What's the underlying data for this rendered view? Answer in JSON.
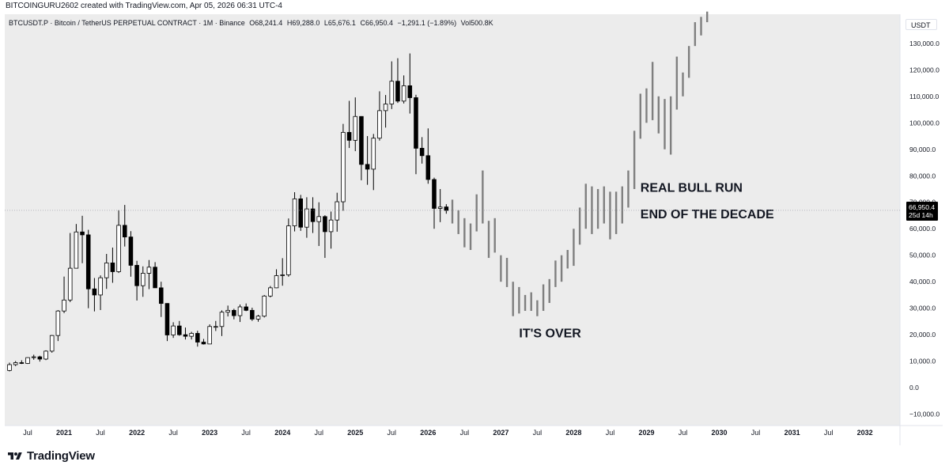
{
  "header": {
    "caption": "BITCOINGURU2602 created with TradingView.com, Apr 05, 2026 06:31 UTC-4"
  },
  "symbol_info": {
    "symbol": "BTCUSDT.P · Bitcoin / TetherUS PERPETUAL CONTRACT · 1M · Binance",
    "open": "O68,241.4",
    "high": "H69,288.0",
    "low": "L65,676.1",
    "close": "C66,950.4",
    "change": "−1,291.1 (−1.89%)",
    "volume": "Vol500.8K"
  },
  "quote_currency": "USDT",
  "price_label": {
    "value": "66,950.4",
    "countdown": "25d 14h"
  },
  "brand": {
    "name": "TradingView",
    "logo_icon": "tradingview-logo"
  },
  "colors": {
    "background": "#ffffff",
    "plot_background": "#ececec",
    "bull_candle": "#ffffff",
    "bear_candle": "#000000",
    "projection": "#7f7f7f",
    "axis_text": "#131722"
  },
  "chart_data": {
    "type": "candlestick",
    "interval": "1M",
    "y_axis": {
      "position": "right",
      "range": [
        -14000,
        141000
      ],
      "ticks": [
        -10000,
        0,
        10000,
        20000,
        30000,
        40000,
        50000,
        60000,
        70000,
        80000,
        90000,
        100000,
        110000,
        120000,
        130000
      ],
      "tick_labels": [
        "−10,000.0",
        "0.0",
        "10,000.0",
        "20,000.0",
        "30,000.0",
        "40,000.0",
        "50,000.0",
        "60,000.0",
        "70,000.0",
        "80,000.0",
        "90,000.0",
        "100,000.0",
        "110,000.0",
        "120,000.0",
        "130,000.0"
      ]
    },
    "x_axis": {
      "range": [
        "2020-04",
        "2032-06"
      ],
      "tick_labels": [
        {
          "date": "2020-07",
          "label": "Jul"
        },
        {
          "date": "2021-01",
          "label": "2021"
        },
        {
          "date": "2021-07",
          "label": "Jul"
        },
        {
          "date": "2022-01",
          "label": "2022"
        },
        {
          "date": "2022-07",
          "label": "Jul"
        },
        {
          "date": "2023-01",
          "label": "2023"
        },
        {
          "date": "2023-07",
          "label": "Jul"
        },
        {
          "date": "2024-01",
          "label": "2024"
        },
        {
          "date": "2024-07",
          "label": "Jul"
        },
        {
          "date": "2025-01",
          "label": "2025"
        },
        {
          "date": "2025-07",
          "label": "Jul"
        },
        {
          "date": "2026-01",
          "label": "2026"
        },
        {
          "date": "2026-07",
          "label": "Jul"
        },
        {
          "date": "2027-01",
          "label": "2027"
        },
        {
          "date": "2027-07",
          "label": "Jul"
        },
        {
          "date": "2028-01",
          "label": "2028"
        },
        {
          "date": "2028-07",
          "label": "Jul"
        },
        {
          "date": "2029-01",
          "label": "2029"
        },
        {
          "date": "2029-07",
          "label": "Jul"
        },
        {
          "date": "2030-01",
          "label": "2030"
        },
        {
          "date": "2030-07",
          "label": "Jul"
        },
        {
          "date": "2031-01",
          "label": "2031"
        },
        {
          "date": "2031-07",
          "label": "Jul"
        },
        {
          "date": "2032-01",
          "label": "2032"
        }
      ]
    },
    "grid": false,
    "candles": {
      "fields": [
        "date",
        "open",
        "high",
        "low",
        "close"
      ],
      "rows": [
        [
          "2020-04",
          6500,
          9450,
          6150,
          8700
        ],
        [
          "2020-05",
          8700,
          10050,
          8150,
          9450
        ],
        [
          "2020-06",
          9450,
          10350,
          8950,
          9150
        ],
        [
          "2020-07",
          9150,
          11450,
          8950,
          11350
        ],
        [
          "2020-08",
          11350,
          12450,
          10550,
          11650
        ],
        [
          "2020-09",
          11650,
          12050,
          9850,
          10800
        ],
        [
          "2020-10",
          10800,
          14100,
          10400,
          13800
        ],
        [
          "2020-11",
          13800,
          19900,
          13200,
          19700
        ],
        [
          "2020-12",
          19700,
          29300,
          17600,
          28950
        ],
        [
          "2021-01",
          28950,
          41950,
          28150,
          33100
        ],
        [
          "2021-02",
          33100,
          58400,
          32300,
          45100
        ],
        [
          "2021-03",
          45100,
          61800,
          45000,
          58800
        ],
        [
          "2021-04",
          58800,
          64900,
          47000,
          57700
        ],
        [
          "2021-05",
          57700,
          59600,
          30000,
          37300
        ],
        [
          "2021-06",
          37300,
          41400,
          28800,
          35000
        ],
        [
          "2021-07",
          35000,
          42400,
          29300,
          41500
        ],
        [
          "2021-08",
          41500,
          50500,
          37300,
          47100
        ],
        [
          "2021-09",
          47100,
          52900,
          39600,
          43800
        ],
        [
          "2021-10",
          43800,
          67000,
          43300,
          61300
        ],
        [
          "2021-11",
          61300,
          69000,
          53300,
          56900
        ],
        [
          "2021-12",
          56900,
          59100,
          41900,
          46200
        ],
        [
          "2022-01",
          46200,
          47900,
          32900,
          38500
        ],
        [
          "2022-02",
          38500,
          45800,
          34300,
          43200
        ],
        [
          "2022-03",
          43200,
          48200,
          37200,
          45500
        ],
        [
          "2022-04",
          45500,
          47400,
          37700,
          37700
        ],
        [
          "2022-05",
          37700,
          40000,
          26700,
          31800
        ],
        [
          "2022-06",
          31800,
          31900,
          17600,
          19900
        ],
        [
          "2022-07",
          19900,
          24700,
          18800,
          23300
        ],
        [
          "2022-08",
          23300,
          25200,
          19600,
          20000
        ],
        [
          "2022-09",
          20000,
          22700,
          18200,
          19400
        ],
        [
          "2022-10",
          19400,
          21100,
          18200,
          20500
        ],
        [
          "2022-11",
          20500,
          21500,
          15500,
          17200
        ],
        [
          "2022-12",
          17200,
          18400,
          16300,
          16500
        ],
        [
          "2023-01",
          16500,
          23900,
          16500,
          23100
        ],
        [
          "2023-02",
          23100,
          25200,
          21400,
          23100
        ],
        [
          "2023-03",
          23100,
          29200,
          19500,
          28500
        ],
        [
          "2023-04",
          28500,
          31000,
          26900,
          29200
        ],
        [
          "2023-05",
          29200,
          29800,
          25800,
          27200
        ],
        [
          "2023-06",
          27200,
          31400,
          24800,
          30500
        ],
        [
          "2023-07",
          30500,
          31800,
          28900,
          29200
        ],
        [
          "2023-08",
          29200,
          30200,
          25200,
          25900
        ],
        [
          "2023-09",
          25900,
          27500,
          24900,
          27000
        ],
        [
          "2023-10",
          27000,
          35000,
          26500,
          34600
        ],
        [
          "2023-11",
          34600,
          38400,
          34100,
          37700
        ],
        [
          "2023-12",
          37700,
          44700,
          37600,
          42300
        ],
        [
          "2024-01",
          42300,
          48900,
          38500,
          42600
        ],
        [
          "2024-02",
          42600,
          63900,
          41900,
          61100
        ],
        [
          "2024-03",
          61100,
          73800,
          59000,
          71300
        ],
        [
          "2024-04",
          71300,
          72800,
          59200,
          60600
        ],
        [
          "2024-05",
          60600,
          71900,
          56600,
          67500
        ],
        [
          "2024-06",
          67500,
          71900,
          58400,
          62700
        ],
        [
          "2024-07",
          62700,
          70000,
          53500,
          64600
        ],
        [
          "2024-08",
          64600,
          65100,
          49000,
          58900
        ],
        [
          "2024-09",
          58900,
          66500,
          52500,
          63300
        ],
        [
          "2024-10",
          63300,
          73600,
          58900,
          70200
        ],
        [
          "2024-11",
          70200,
          99600,
          66800,
          96400
        ],
        [
          "2024-12",
          96400,
          108300,
          90500,
          93400
        ],
        [
          "2025-01",
          93400,
          109600,
          89300,
          102400
        ],
        [
          "2025-02",
          102400,
          102500,
          78300,
          84300
        ],
        [
          "2025-03",
          84300,
          95000,
          76600,
          82500
        ],
        [
          "2025-04",
          82500,
          95800,
          74600,
          94200
        ],
        [
          "2025-05",
          94200,
          111900,
          93300,
          104600
        ],
        [
          "2025-06",
          104600,
          110500,
          98200,
          107100
        ],
        [
          "2025-07",
          107100,
          123200,
          105200,
          115700
        ],
        [
          "2025-08",
          115700,
          124400,
          107500,
          108200
        ],
        [
          "2025-09",
          108200,
          117900,
          107300,
          114000
        ],
        [
          "2025-10",
          114000,
          126200,
          103500,
          109500
        ],
        [
          "2025-11",
          109500,
          110600,
          80600,
          90400
        ],
        [
          "2025-12",
          90400,
          94600,
          84600,
          87600
        ],
        [
          "2026-01",
          87600,
          97900,
          77000,
          78600
        ],
        [
          "2026-02",
          78600,
          79300,
          60000,
          67700
        ],
        [
          "2026-03",
          67700,
          75000,
          62500,
          68200
        ],
        [
          "2026-04",
          68241.4,
          69288.0,
          65676.1,
          66950.4
        ]
      ]
    },
    "projection": {
      "style": "bars",
      "rows": [
        [
          "2026-05",
          71000,
          62000
        ],
        [
          "2026-06",
          67000,
          58000
        ],
        [
          "2026-07",
          64000,
          53000
        ],
        [
          "2026-08",
          62000,
          52000
        ],
        [
          "2026-09",
          73000,
          59000
        ],
        [
          "2026-10",
          82000,
          62000
        ],
        [
          "2026-11",
          63000,
          49000
        ],
        [
          "2026-12",
          64000,
          51000
        ],
        [
          "2027-01",
          50000,
          40000
        ],
        [
          "2027-02",
          49000,
          38000
        ],
        [
          "2027-03",
          40000,
          27000
        ],
        [
          "2027-04",
          38000,
          28000
        ],
        [
          "2027-05",
          35000,
          29000
        ],
        [
          "2027-06",
          36000,
          29000
        ],
        [
          "2027-07",
          33000,
          27000
        ],
        [
          "2027-08",
          39000,
          29000
        ],
        [
          "2027-09",
          41000,
          32000
        ],
        [
          "2027-10",
          48000,
          38000
        ],
        [
          "2027-11",
          50000,
          40000
        ],
        [
          "2027-12",
          52000,
          45000
        ],
        [
          "2028-01",
          60000,
          46000
        ],
        [
          "2028-02",
          68000,
          54000
        ],
        [
          "2028-03",
          77000,
          60000
        ],
        [
          "2028-04",
          76000,
          58000
        ],
        [
          "2028-05",
          75000,
          60000
        ],
        [
          "2028-06",
          76000,
          62000
        ],
        [
          "2028-07",
          74000,
          56000
        ],
        [
          "2028-08",
          74000,
          58000
        ],
        [
          "2028-09",
          76000,
          62000
        ],
        [
          "2028-10",
          82000,
          68000
        ],
        [
          "2028-11",
          97000,
          75000
        ],
        [
          "2028-12",
          111000,
          94000
        ],
        [
          "2029-01",
          113000,
          100000
        ],
        [
          "2029-02",
          123000,
          101000
        ],
        [
          "2029-03",
          110000,
          96000
        ],
        [
          "2029-04",
          109000,
          90000
        ],
        [
          "2029-05",
          110000,
          88000
        ],
        [
          "2029-06",
          125000,
          105000
        ],
        [
          "2029-07",
          119000,
          110000
        ],
        [
          "2029-08",
          129000,
          117000
        ],
        [
          "2029-09",
          138000,
          129000
        ],
        [
          "2029-10",
          140000,
          133000
        ],
        [
          "2029-11",
          142000,
          138000
        ]
      ]
    },
    "annotations": [
      {
        "text": "REAL BULL RUN",
        "date": "2028-12",
        "value": 74000
      },
      {
        "text": "END OF THE DECADE",
        "date": "2028-12",
        "value": 64000
      },
      {
        "text": "IT'S OVER",
        "date": "2027-04",
        "value": 19000
      }
    ],
    "last_price": 66950.4
  }
}
